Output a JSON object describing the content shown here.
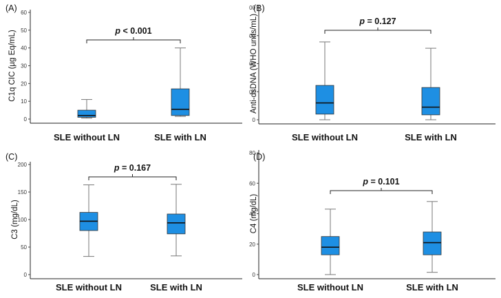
{
  "chart_data": [
    {
      "type": "box",
      "panel_label": "(A)",
      "ylabel": "C1q CIC (µg Eq/mL)",
      "ylim": [
        0,
        60
      ],
      "yticks": [
        "0",
        "10",
        "20",
        "30",
        "40",
        "50",
        "60"
      ],
      "categories": [
        "SLE without LN",
        "SLE with LN"
      ],
      "boxes": [
        {
          "min": 0.5,
          "q1": 1,
          "median": 2,
          "q3": 5,
          "max": 11
        },
        {
          "min": 1.5,
          "q1": 2,
          "median": 5.5,
          "q3": 17,
          "max": 40
        }
      ],
      "annotation": {
        "p_symbol": "p",
        "p_rest": " < 0.001"
      },
      "box_color": "#1E8FE3"
    },
    {
      "type": "box",
      "panel_label": "(B)",
      "ylabel": "Anti-dsDNA (WHO units/mL)",
      "ylim": [
        0,
        800
      ],
      "yticks": [
        "0",
        "200",
        "400",
        "600",
        "800"
      ],
      "categories": [
        "SLE without LN",
        "SLE with LN"
      ],
      "boxes": [
        {
          "min": 0,
          "q1": 40,
          "median": 120,
          "q3": 245,
          "max": 555
        },
        {
          "min": 0,
          "q1": 35,
          "median": 90,
          "q3": 230,
          "max": 510
        }
      ],
      "annotation": {
        "p_symbol": "p",
        "p_rest": " = 0.127"
      },
      "box_color": "#1E8FE3"
    },
    {
      "type": "box",
      "panel_label": "(C)",
      "ylabel": "C3 (mg/dL)",
      "ylim": [
        0,
        200
      ],
      "yticks": [
        "0",
        "50",
        "100",
        "150",
        "200"
      ],
      "categories": [
        "SLE without LN",
        "SLE with LN"
      ],
      "boxes": [
        {
          "min": 33,
          "q1": 80,
          "median": 97,
          "q3": 113,
          "max": 163
        },
        {
          "min": 34,
          "q1": 74,
          "median": 94,
          "q3": 110,
          "max": 164
        }
      ],
      "annotation": {
        "p_symbol": "p",
        "p_rest": " = 0.167"
      },
      "box_color": "#1E8FE3"
    },
    {
      "type": "box",
      "panel_label": "(D)",
      "ylabel": "C4 (mg/dL)",
      "ylim": [
        0,
        80
      ],
      "yticks": [
        "0",
        "20",
        "40",
        "60",
        "80"
      ],
      "categories": [
        "SLE without LN",
        "SLE with LN"
      ],
      "boxes": [
        {
          "min": 0,
          "q1": 13,
          "median": 18,
          "q3": 25,
          "max": 43
        },
        {
          "min": 1.5,
          "q1": 13,
          "median": 21,
          "q3": 28,
          "max": 48
        }
      ],
      "annotation": {
        "p_symbol": "p",
        "p_rest": " = 0.101"
      },
      "box_color": "#1E8FE3"
    }
  ]
}
